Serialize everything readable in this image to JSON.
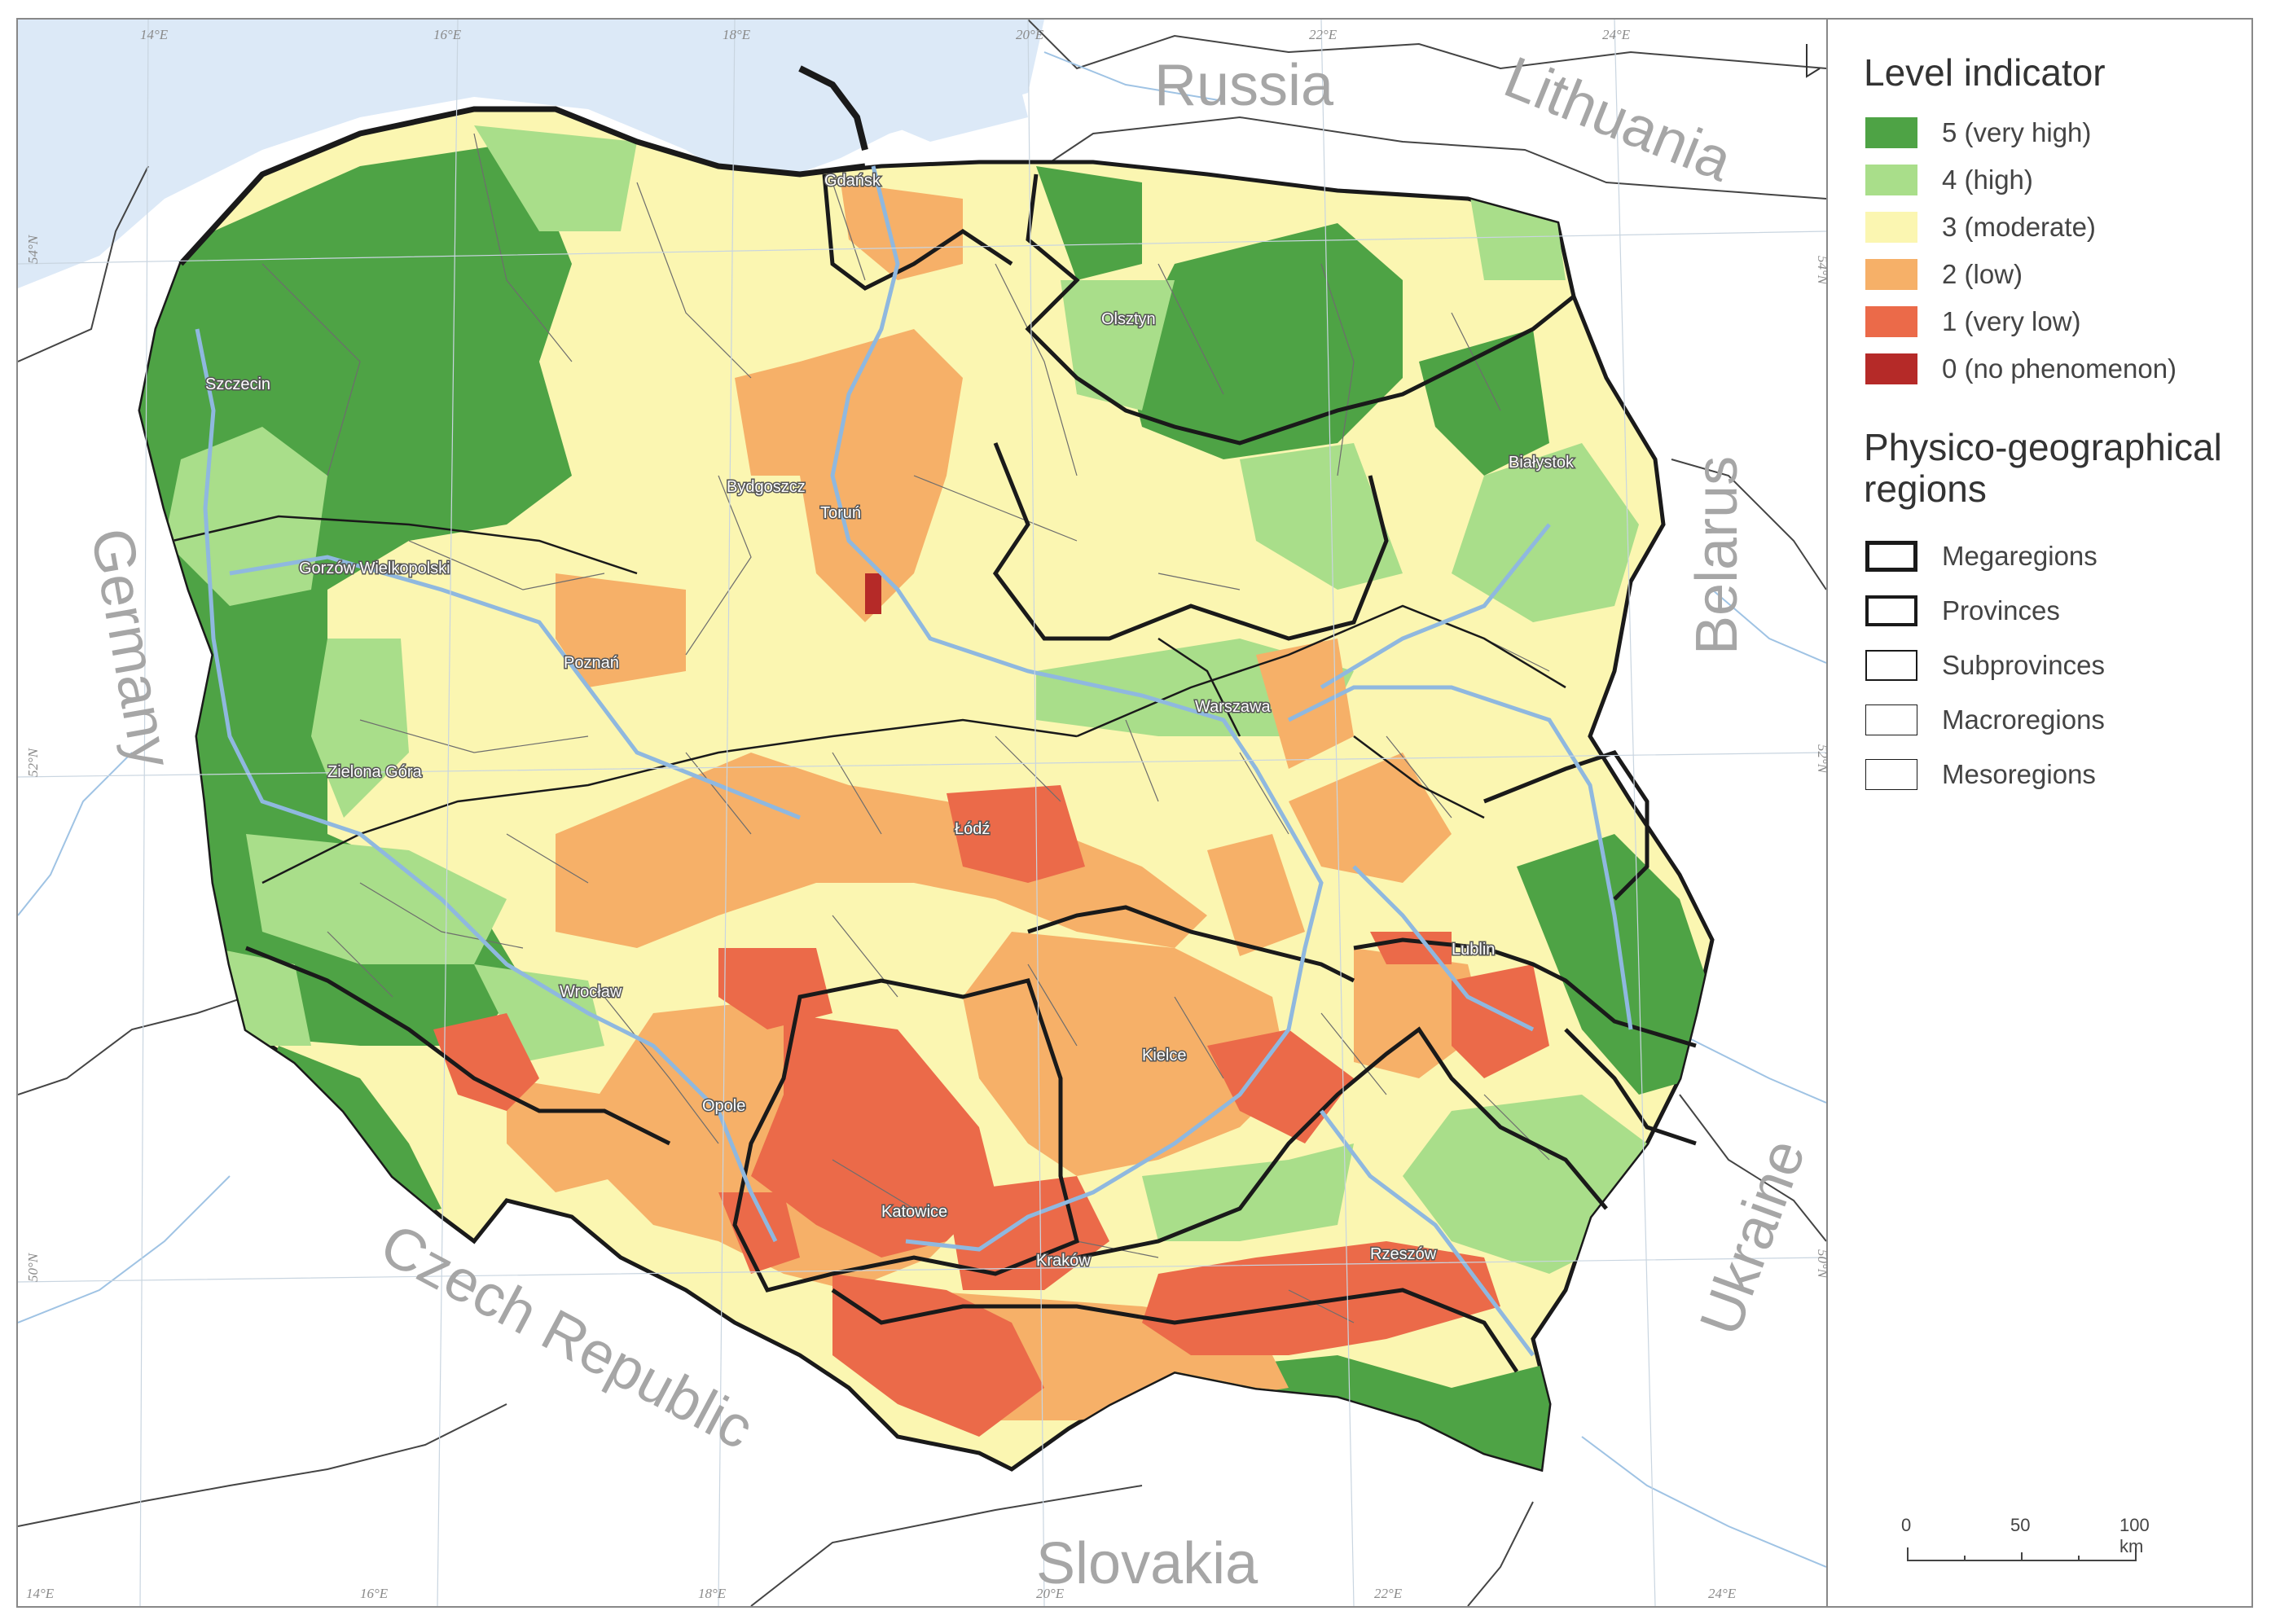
{
  "legend": {
    "level_title": "Level indicator",
    "levels": [
      {
        "label": "5 (very high)",
        "color": "#4ea345"
      },
      {
        "label": "4 (high)",
        "color": "#a9de8a"
      },
      {
        "label": "3 (moderate)",
        "color": "#fbf6b1"
      },
      {
        "label": "2 (low)",
        "color": "#f6b068"
      },
      {
        "label": "1 (very low)",
        "color": "#eb6a49"
      },
      {
        "label": "0 (no phenomenon)",
        "color": "#b52a28"
      }
    ],
    "regions_title": "Physico-geographical regions",
    "regions": [
      {
        "label": "Megaregions",
        "stroke": 5
      },
      {
        "label": "Provinces",
        "stroke": 4
      },
      {
        "label": "Subprovinces",
        "stroke": 2.5
      },
      {
        "label": "Macroregions",
        "stroke": 1.5
      },
      {
        "label": "Mesoregions",
        "stroke": 0.8
      }
    ]
  },
  "countries": [
    "Russia",
    "Lithuania",
    "Belarus",
    "Ukraine",
    "Slovakia",
    "Czech Republic",
    "Germany"
  ],
  "cities": [
    "Gdańsk",
    "Olsztyn",
    "Szczecin",
    "Bydgoszcz",
    "Toruń",
    "Białystok",
    "Gorzów Wielkopolski",
    "Poznań",
    "Warszawa",
    "Zielona Góra",
    "Łódź",
    "Lublin",
    "Wrocław",
    "Kielce",
    "Opole",
    "Katowice",
    "Kraków",
    "Rzeszów"
  ],
  "grid": {
    "lon_top": [
      "14°E",
      "16°E",
      "18°E",
      "20°E",
      "22°E",
      "24°E"
    ],
    "lon_bottom": [
      "14°E",
      "16°E",
      "18°E",
      "20°E",
      "22°E",
      "24°E"
    ],
    "lat_left": [
      "54°N",
      "52°N",
      "50°N"
    ],
    "lat_right": [
      "54°N",
      "52°N",
      "50°N"
    ]
  },
  "scale": {
    "ticks": [
      "0",
      "50",
      "100 km"
    ]
  },
  "colors": {
    "sea": "#dce9f7",
    "river": "#8fb8df",
    "border": "#1a1a1a",
    "outside": "#ffffff"
  }
}
